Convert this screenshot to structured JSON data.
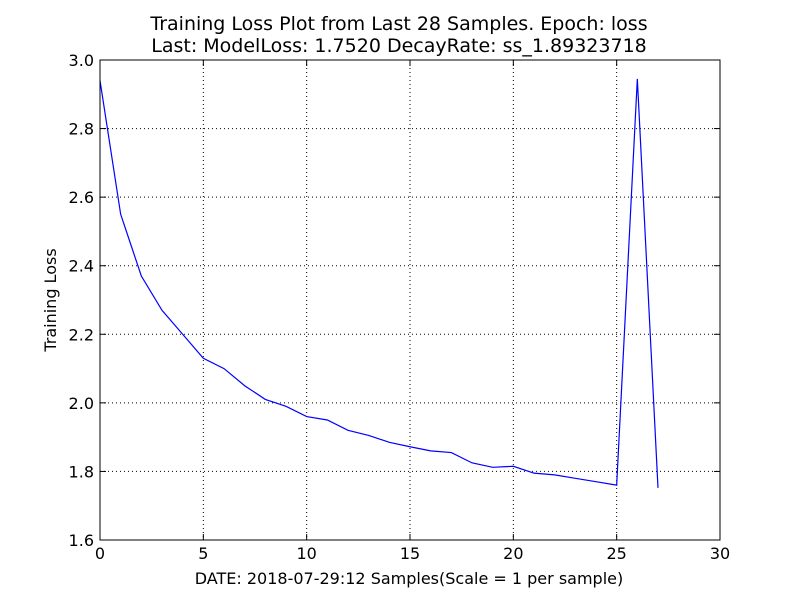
{
  "chart_data": {
    "type": "line",
    "title_line1": "Training Loss Plot from Last 28 Samples.   Epoch: loss",
    "title_line2": "Last: ModelLoss: 1.7520    DecayRate: ss_1.89323718",
    "xlabel": "DATE: 2018-07-29:12       Samples(Scale = 1 per sample)",
    "ylabel": "Training Loss",
    "xlim": [
      0,
      30
    ],
    "ylim": [
      1.6,
      3.0
    ],
    "xticks": [
      0,
      5,
      10,
      15,
      20,
      25,
      30
    ],
    "yticks": [
      1.6,
      1.8,
      2.0,
      2.2,
      2.4,
      2.6,
      2.8,
      3.0
    ],
    "xtick_labels": [
      "0",
      "5",
      "10",
      "15",
      "20",
      "25",
      "30"
    ],
    "ytick_labels": [
      "1.6",
      "1.8",
      "2.0",
      "2.2",
      "2.4",
      "2.6",
      "2.8",
      "3.0"
    ],
    "grid": true,
    "color": "#0000ff",
    "series": [
      {
        "x": [
          0,
          1,
          2,
          3,
          4,
          5,
          6,
          7,
          8,
          9,
          10,
          11,
          12,
          13,
          14,
          15,
          16,
          17,
          18,
          19,
          20,
          21,
          22,
          23,
          24,
          25,
          26,
          27
        ],
        "values": [
          2.94,
          2.55,
          2.37,
          2.27,
          2.2,
          2.13,
          2.1,
          2.05,
          2.01,
          1.99,
          1.96,
          1.95,
          1.92,
          1.905,
          1.885,
          1.872,
          1.86,
          1.855,
          1.825,
          1.812,
          1.815,
          1.795,
          1.79,
          1.78,
          1.77,
          1.76,
          2.945,
          1.752
        ]
      }
    ]
  }
}
